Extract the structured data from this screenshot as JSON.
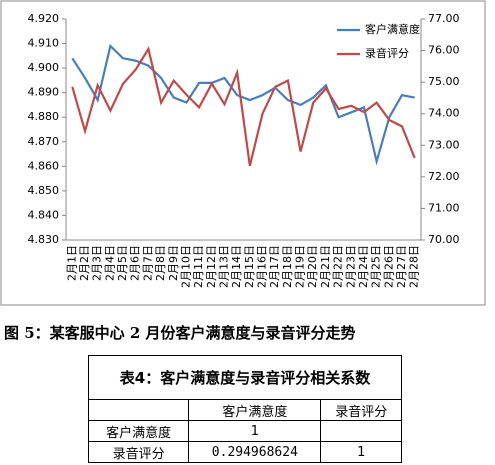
{
  "chart_data": {
    "type": "line",
    "categories": [
      "2月1日",
      "2月2日",
      "2月3日",
      "2月4日",
      "2月5日",
      "2月6日",
      "2月7日",
      "2月8日",
      "2月9日",
      "2月10日",
      "2月11日",
      "2月12日",
      "2月13日",
      "2月14日",
      "2月15日",
      "2月16日",
      "2月17日",
      "2月18日",
      "2月19日",
      "2月20日",
      "2月21日",
      "2月22日",
      "2月23日",
      "2月24日",
      "2月25日",
      "2月26日",
      "2月27日",
      "2月28日"
    ],
    "series": [
      {
        "name": "客户满意度",
        "color": "#4a7ebb",
        "values": [
          4.904,
          4.896,
          4.887,
          4.909,
          4.904,
          4.903,
          4.901,
          4.896,
          4.888,
          4.886,
          4.894,
          4.894,
          4.896,
          4.889,
          4.887,
          4.889,
          4.892,
          4.887,
          4.885,
          4.888,
          4.893,
          4.88,
          4.882,
          4.884,
          4.862,
          4.88,
          4.889,
          4.888
        ]
      },
      {
        "name": "录音评分",
        "color": "#be4b48",
        "axis": "y2",
        "values": [
          74.85,
          73.45,
          74.9,
          74.1,
          74.95,
          75.4,
          76.05,
          74.35,
          75.05,
          74.6,
          74.2,
          74.95,
          74.3,
          75.3,
          72.35,
          74.0,
          74.85,
          75.05,
          72.8,
          74.35,
          74.8,
          74.15,
          74.25,
          74.05,
          74.35,
          73.8,
          73.6,
          72.6
        ]
      }
    ],
    "ylim": [
      4.83,
      4.92
    ],
    "yticks": [
      {
        "value": 4.83,
        "label": "4.830"
      },
      {
        "value": 4.84,
        "label": "4.840"
      },
      {
        "value": 4.85,
        "label": "4.850"
      },
      {
        "value": 4.86,
        "label": "4.860"
      },
      {
        "value": 4.87,
        "label": "4.870"
      },
      {
        "value": 4.88,
        "label": "4.880"
      },
      {
        "value": 4.89,
        "label": "4.890"
      },
      {
        "value": 4.9,
        "label": "4.900"
      },
      {
        "value": 4.91,
        "label": "4.910"
      },
      {
        "value": 4.92,
        "label": "4.920"
      }
    ],
    "y2lim": [
      70,
      77
    ],
    "y2ticks": [
      {
        "value": 70,
        "label": "70.00"
      },
      {
        "value": 71,
        "label": "71.00"
      },
      {
        "value": 72,
        "label": "72.00"
      },
      {
        "value": 73,
        "label": "73.00"
      },
      {
        "value": 74,
        "label": "74.00"
      },
      {
        "value": 75,
        "label": "75.00"
      },
      {
        "value": 76,
        "label": "76.00"
      },
      {
        "value": 77,
        "label": "77.00"
      }
    ],
    "legend": "top-right"
  },
  "caption": "图 5：某客服中心 2 月份客户满意度与录音评分走势",
  "table": {
    "title": "表4：客户满意度与录音评分相关系数",
    "columns": [
      "客户满意度",
      "录音评分"
    ],
    "rows": [
      {
        "label": "客户满意度",
        "cells": [
          "1"
        ]
      },
      {
        "label": "录音评分",
        "cells": [
          "0.294968624",
          "1"
        ]
      }
    ]
  }
}
